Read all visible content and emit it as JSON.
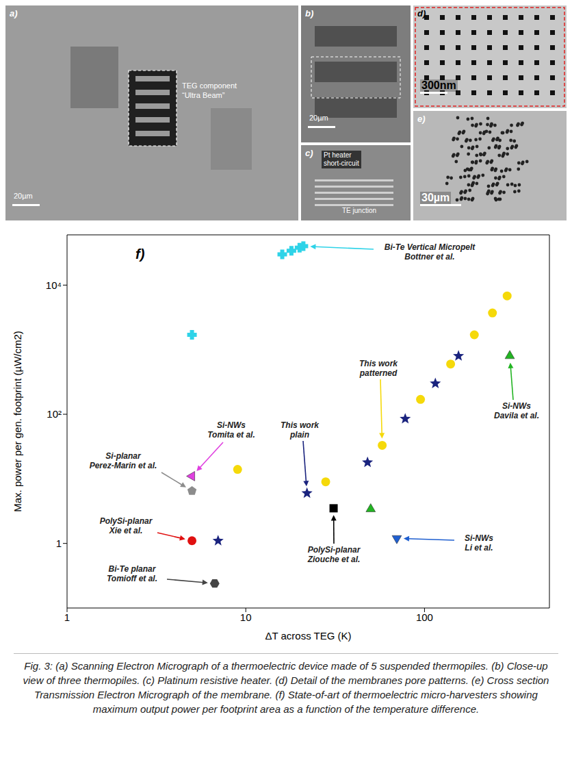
{
  "panels": [
    {
      "label": "a)",
      "texts": [
        "TEG component",
        "“Ultra Beam”"
      ],
      "scale_bar": "20µm"
    },
    {
      "label": "b)",
      "scale_bar": "20µm"
    },
    {
      "label": "c)",
      "texts": [
        "Pt heater",
        "short-circuit",
        "TE junction"
      ]
    },
    {
      "label": "d)",
      "scale_bar": "300nm"
    },
    {
      "label": "e)",
      "scale_bar": "30µm"
    }
  ],
  "chart_data": {
    "type": "scatter",
    "panel_label": "f)",
    "x_label": "ΔT across TEG (K)",
    "y_label": "Max. power per gen. footprint (µW/cm2)",
    "log": true,
    "grid": false,
    "xlim": [
      1,
      500
    ],
    "ylim": [
      0.1,
      60000
    ],
    "xticks": [
      1,
      10,
      100
    ],
    "yticks": [
      1,
      {
        "value": 100,
        "label": "10²"
      },
      {
        "value": 10000,
        "label": "10⁴"
      }
    ],
    "series": [
      {
        "label": "Bi-Te Vertical Micropelt\nBottner et al.",
        "color": "#2ed3e8",
        "marker": "cross",
        "x": [
          5,
          16,
          18,
          20,
          21
        ],
        "values": [
          1700,
          30000,
          34000,
          38000,
          40000
        ]
      },
      {
        "label": "Si-NWs\nTomita et al.",
        "color": "#e040e0",
        "marker": "triangle-left",
        "x": [
          5
        ],
        "values": [
          11
        ]
      },
      {
        "label": "Si-planar\nPerez-Marin et al.",
        "color": "#8c8c8c",
        "marker": "pentagon",
        "x": [
          5
        ],
        "values": [
          6.5
        ]
      },
      {
        "label": "PolySi-planar\nXie et al.",
        "color": "#e01010",
        "marker": "circle",
        "x": [
          5
        ],
        "values": [
          1.1
        ]
      },
      {
        "label": "Bi-Te planar\nTomioff et al.",
        "color": "#444444",
        "marker": "hexagon",
        "x": [
          6.7
        ],
        "values": [
          0.24
        ]
      },
      {
        "label": "PolySi-planar\nZiouche et al.",
        "color": "#000000",
        "marker": "square",
        "x": [
          31
        ],
        "values": [
          3.5
        ]
      },
      {
        "label": "Si-NWs\nLi et al.",
        "color": "#1f5fd0",
        "marker": "triangle-down",
        "x": [
          70
        ],
        "values": [
          1.2
        ]
      },
      {
        "label": "Si-NWs\nDavila et al.",
        "color": "#22b422",
        "marker": "triangle",
        "x": [
          50,
          300
        ],
        "values": [
          3.4,
          800
        ]
      },
      {
        "label": "This work\nplain",
        "color": "#1a237e",
        "marker": "star",
        "x": [
          7,
          22,
          48,
          78,
          115,
          155
        ],
        "values": [
          1.1,
          6,
          18,
          85,
          300,
          800
        ]
      },
      {
        "label": "This work\npatterned",
        "color": "#f5d90a",
        "marker": "circle",
        "x": [
          9,
          28,
          58,
          95,
          140,
          190,
          240,
          290
        ],
        "values": [
          14,
          9,
          33,
          170,
          600,
          1700,
          3700,
          6800
        ]
      }
    ]
  },
  "caption": {
    "label": "Fig. 3:",
    "text": "(a) Scanning Electron Micrograph of a thermoelectric device made of 5 suspended thermopiles. (b) Close-up view of three thermopiles. (c) Platinum resistive heater. (d) Detail of the membranes pore patterns. (e) Cross section Transmission Electron Micrograph of the membrane. (f) State-of-art of thermoelectric micro-harvesters showing maximum output power per footprint area as a function of the temperature difference."
  }
}
